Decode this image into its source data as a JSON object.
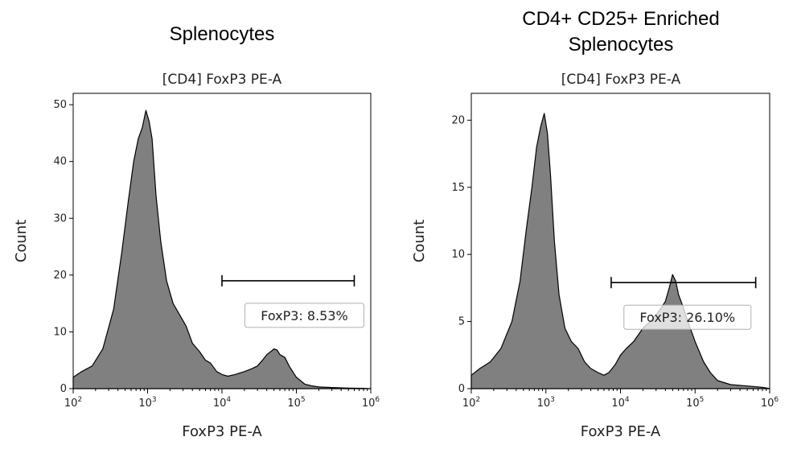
{
  "chart_data": [
    {
      "type": "area",
      "title": "Splenocytes",
      "subtitle": "[CD4] FoxP3 PE-A",
      "xlabel": "FoxP3 PE-A",
      "ylabel": "Count",
      "xscale": "log",
      "xlim": [
        100,
        1000000
      ],
      "ylim": [
        0,
        52
      ],
      "x_ticks": [
        {
          "base": "10",
          "exp": "2"
        },
        {
          "base": "10",
          "exp": "3"
        },
        {
          "base": "10",
          "exp": "4"
        },
        {
          "base": "10",
          "exp": "5"
        },
        {
          "base": "10",
          "exp": "6"
        }
      ],
      "y_ticks": [
        0,
        10,
        20,
        30,
        40,
        50
      ],
      "grid": false,
      "series": [
        {
          "x": [
            100,
            130,
            180,
            250,
            350,
            450,
            550,
            650,
            750,
            850,
            950,
            1050,
            1150,
            1300,
            1500,
            1800,
            2200,
            2700,
            3300,
            4000,
            5000,
            6000,
            7000,
            8500,
            10000,
            12000,
            15000,
            20000,
            25000,
            30000,
            35000,
            40000,
            45000,
            50000,
            55000,
            60000,
            70000,
            80000,
            100000,
            130000,
            160000,
            200000,
            300000,
            500000,
            800000,
            1000000
          ],
          "values": [
            2,
            3,
            4,
            7,
            14,
            24,
            33,
            40,
            44,
            46,
            49,
            47,
            44,
            34,
            26,
            19,
            15,
            13,
            11,
            8,
            6.5,
            5,
            4.5,
            3,
            2.5,
            2.2,
            2.5,
            3,
            3.5,
            4,
            5,
            6,
            6.5,
            7,
            6.8,
            6,
            5.5,
            4,
            2,
            0.8,
            0.5,
            0.3,
            0.2,
            0.1,
            0.05,
            0
          ]
        }
      ],
      "gate": {
        "label": "FoxP3: 8.53%",
        "start": 10000,
        "end": 600000,
        "level": 19
      }
    },
    {
      "type": "area",
      "title": "CD4+ CD25+ Enriched Splenocytes",
      "subtitle": "[CD4] FoxP3 PE-A",
      "xlabel": "FoxP3 PE-A",
      "ylabel": "Count",
      "xscale": "log",
      "xlim": [
        100,
        1000000
      ],
      "ylim": [
        0,
        22
      ],
      "x_ticks": [
        {
          "base": "10",
          "exp": "2"
        },
        {
          "base": "10",
          "exp": "3"
        },
        {
          "base": "10",
          "exp": "4"
        },
        {
          "base": "10",
          "exp": "5"
        },
        {
          "base": "10",
          "exp": "6"
        }
      ],
      "y_ticks": [
        0,
        5,
        10,
        15,
        20
      ],
      "grid": false,
      "series": [
        {
          "x": [
            100,
            130,
            180,
            250,
            350,
            450,
            550,
            650,
            750,
            850,
            950,
            1050,
            1150,
            1300,
            1500,
            1800,
            2200,
            2700,
            3300,
            4000,
            5000,
            6000,
            7000,
            8500,
            10000,
            12000,
            15000,
            20000,
            25000,
            30000,
            35000,
            40000,
            45000,
            50000,
            55000,
            60000,
            70000,
            80000,
            100000,
            130000,
            160000,
            200000,
            300000,
            500000,
            800000,
            1000000
          ],
          "values": [
            1,
            1.5,
            2,
            3,
            5,
            8,
            12,
            15,
            18,
            19.5,
            20.5,
            19,
            16,
            11,
            7,
            4.5,
            3.5,
            3,
            2,
            1.5,
            1.2,
            1,
            1.2,
            1.8,
            2.5,
            3,
            3.5,
            4.5,
            5,
            5.5,
            6,
            6.5,
            7.5,
            8.5,
            8,
            7,
            6,
            5,
            3.5,
            2,
            1.2,
            0.6,
            0.3,
            0.2,
            0.1,
            0
          ]
        }
      ],
      "gate": {
        "label": "FoxP3: 26.10%",
        "start": 7500,
        "end": 650000,
        "level": 7.9
      }
    }
  ]
}
